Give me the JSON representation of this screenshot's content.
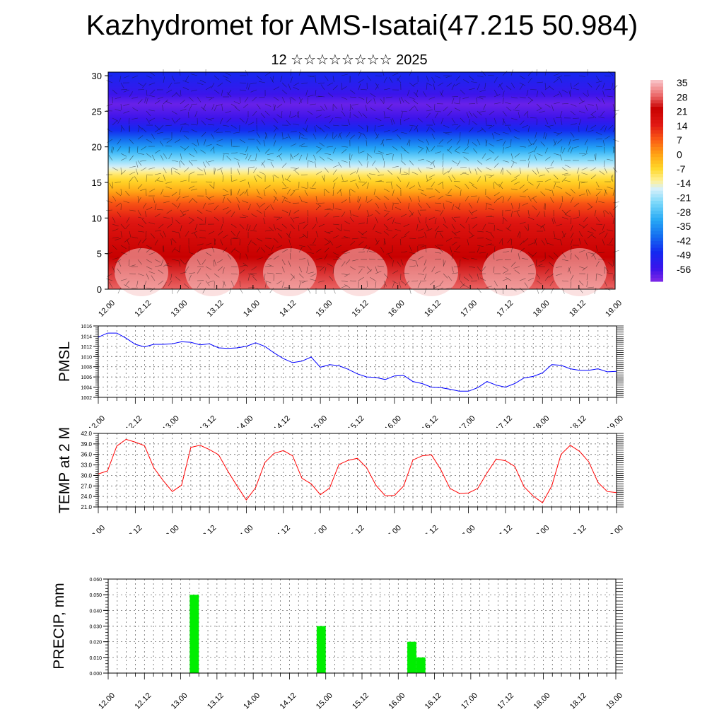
{
  "title": "Kazhydromet for AMS-Isatai(47.215 50.984)",
  "subtitle": "12 ☆☆☆☆☆☆☆☆ 2025",
  "colors": {
    "pmsl_line": "#0000ff",
    "temp_line": "#ff0000",
    "precip_bar": "#00ee00",
    "grid": "#555555"
  },
  "time_ticks": [
    "12.00",
    "12.12",
    "13.00",
    "13.12",
    "14.00",
    "14.12",
    "15.00",
    "15.12",
    "16.00",
    "16.12",
    "17.00",
    "17.12",
    "18.00",
    "18.12",
    "19.00"
  ],
  "chart_data": [
    {
      "type": "heatmap",
      "name": "cross-section",
      "x_ticks": [
        "12.00",
        "12.12",
        "13.00",
        "13.12",
        "14.00",
        "14.12",
        "15.00",
        "15.12",
        "16.00",
        "16.12",
        "17.00",
        "17.12",
        "18.00",
        "18.12",
        "19.00"
      ],
      "y_ticks": [
        "0",
        "5",
        "10",
        "15",
        "20",
        "25",
        "30"
      ],
      "ylim": [
        0,
        30.5
      ],
      "colorbar": {
        "labels": [
          "35",
          "28",
          "21",
          "14",
          "7",
          "0",
          "-7",
          "-14",
          "-21",
          "-28",
          "-35",
          "-42",
          "-49",
          "-56"
        ],
        "range": [
          -60,
          38
        ]
      },
      "profile": {
        "levels": [
          0,
          3,
          6,
          9,
          12,
          14,
          16,
          18,
          20,
          22,
          24,
          26,
          28,
          30.5
        ],
        "values": [
          30,
          26,
          22,
          18,
          10,
          0,
          -8,
          -20,
          -32,
          -44,
          -54,
          -58,
          -52,
          -46
        ]
      }
    },
    {
      "type": "line",
      "name": "PMSL",
      "ylabel": "PMSL",
      "yticks": [
        "1002",
        "1004",
        "1006",
        "1008",
        "1010",
        "1012",
        "1014",
        "1016"
      ],
      "ylim": [
        1002,
        1016
      ],
      "x_ticks": [
        "12.00",
        "12.12",
        "13.00",
        "13.12",
        "14.00",
        "14.12",
        "15.00",
        "15.12",
        "16.00",
        "16.12",
        "17.00",
        "17.12",
        "18.00",
        "18.12",
        "19.00"
      ],
      "values": [
        1013.8,
        1014.6,
        1014.6,
        1013.6,
        1012.4,
        1011.9,
        1012.4,
        1012.4,
        1012.5,
        1012.9,
        1012.8,
        1012.3,
        1012.5,
        1011.7,
        1011.6,
        1011.7,
        1012.0,
        1012.7,
        1012.0,
        1010.7,
        1009.6,
        1008.8,
        1009.1,
        1009.9,
        1007.9,
        1008.4,
        1008.2,
        1007.5,
        1006.6,
        1006.0,
        1005.9,
        1005.5,
        1006.2,
        1006.3,
        1005.1,
        1004.7,
        1004.0,
        1003.9,
        1003.6,
        1003.2,
        1003.2,
        1003.9,
        1005.1,
        1004.4,
        1004.0,
        1004.7,
        1005.8,
        1006.1,
        1006.8,
        1008.4,
        1008.3,
        1007.6,
        1007.3,
        1007.3,
        1007.6,
        1007.0,
        1007.1
      ]
    },
    {
      "type": "line",
      "name": "TEMP at 2 M",
      "ylabel": "TEMP at 2 M",
      "yticks": [
        "21.0",
        "24.0",
        "27.0",
        "30.0",
        "33.0",
        "36.0",
        "39.0",
        "42.0"
      ],
      "ylim": [
        21,
        42
      ],
      "x_ticks": [
        "12.00",
        "12.12",
        "13.00",
        "13.12",
        "14.00",
        "14.12",
        "15.00",
        "15.12",
        "16.00",
        "16.12",
        "17.00",
        "17.12",
        "18.00",
        "18.12",
        "19.00"
      ],
      "values": [
        30.4,
        31.3,
        38.4,
        40.3,
        39.5,
        38.5,
        32.2,
        28.6,
        25.4,
        27.2,
        38.0,
        38.6,
        37.4,
        35.9,
        31.2,
        27.0,
        23.0,
        26.5,
        33.7,
        36.3,
        37.1,
        35.6,
        29.2,
        27.6,
        24.5,
        26.4,
        33.1,
        34.3,
        34.9,
        32.2,
        27.2,
        24.2,
        24.3,
        27.0,
        34.4,
        35.6,
        35.9,
        31.7,
        26.3,
        24.9,
        25.0,
        26.3,
        30.7,
        34.7,
        34.2,
        32.6,
        26.8,
        24.1,
        22.2,
        27.0,
        36.0,
        38.6,
        36.9,
        33.9,
        28.0,
        25.4,
        25.1
      ]
    },
    {
      "type": "bar",
      "name": "PRECIP",
      "ylabel": "PRECIP, mm",
      "yticks": [
        "0.000",
        "0.010",
        "0.020",
        "0.030",
        "0.040",
        "0.050",
        "0.060"
      ],
      "ylim": [
        0,
        0.06
      ],
      "x_ticks": [
        "12.00",
        "12.12",
        "13.00",
        "13.12",
        "14.00",
        "14.12",
        "15.00",
        "15.12",
        "16.00",
        "16.12",
        "17.00",
        "17.12",
        "18.00",
        "18.12",
        "19.00"
      ],
      "bars": [
        {
          "t": 13.125,
          "value": 0.05
        },
        {
          "t": 14.875,
          "value": 0.03
        },
        {
          "t": 16.125,
          "value": 0.02
        },
        {
          "t": 16.25,
          "value": 0.01
        }
      ]
    }
  ]
}
